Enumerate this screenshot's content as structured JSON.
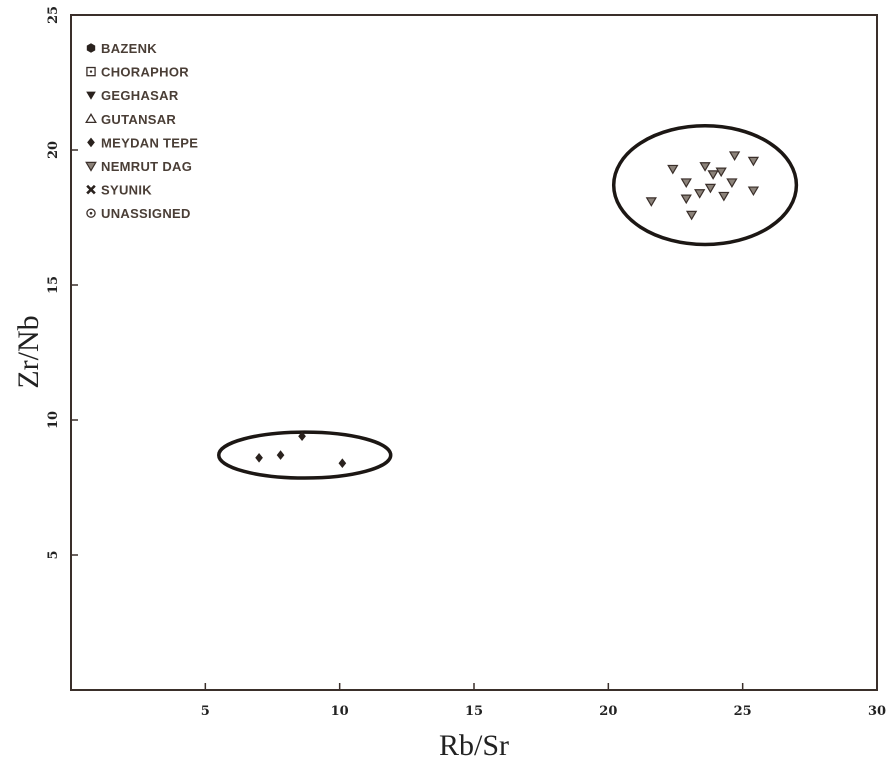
{
  "chart_data": {
    "type": "scatter",
    "title": "",
    "xlabel": "Rb/Sr",
    "ylabel": "Zr/Nb",
    "xlim": [
      0,
      30
    ],
    "ylim": [
      0,
      25
    ],
    "xticks": [
      5,
      10,
      15,
      20,
      25,
      30
    ],
    "yticks": [
      5,
      10,
      15,
      20,
      25
    ],
    "grid": false,
    "legend_position": "top-left",
    "legend": [
      {
        "label": "BAZENK",
        "marker": "hexagon-filled"
      },
      {
        "label": "CHORAPHOR",
        "marker": "square-dotted"
      },
      {
        "label": "GEGHASAR",
        "marker": "triangle-down-filled"
      },
      {
        "label": "GUTANSAR",
        "marker": "triangle-up-open"
      },
      {
        "label": "MEYDAN TEPE",
        "marker": "diamond-filled"
      },
      {
        "label": "NEMRUT DAG",
        "marker": "triangle-down-open"
      },
      {
        "label": "SYUNIK",
        "marker": "x"
      },
      {
        "label": "UNASSIGNED",
        "marker": "circle-dotted"
      }
    ],
    "series": [
      {
        "name": "MEYDAN TEPE",
        "marker": "diamond-filled",
        "points": [
          [
            7.0,
            8.6
          ],
          [
            7.8,
            8.7
          ],
          [
            8.6,
            9.4
          ],
          [
            10.1,
            8.4
          ]
        ]
      },
      {
        "name": "NEMRUT DAG",
        "marker": "triangle-down-open",
        "points": [
          [
            21.6,
            18.1
          ],
          [
            22.4,
            19.3
          ],
          [
            22.9,
            18.8
          ],
          [
            22.9,
            18.2
          ],
          [
            23.1,
            17.6
          ],
          [
            23.4,
            18.4
          ],
          [
            23.6,
            19.4
          ],
          [
            23.8,
            18.6
          ],
          [
            23.9,
            19.1
          ],
          [
            24.2,
            19.2
          ],
          [
            24.3,
            18.3
          ],
          [
            24.6,
            18.8
          ],
          [
            24.7,
            19.8
          ],
          [
            25.4,
            19.6
          ],
          [
            25.4,
            18.5
          ]
        ]
      }
    ],
    "ellipses": [
      {
        "center": [
          8.7,
          8.7
        ],
        "rx": 3.2,
        "ry": 0.85
      },
      {
        "center": [
          23.6,
          18.7
        ],
        "rx": 3.4,
        "ry": 2.2
      }
    ]
  }
}
